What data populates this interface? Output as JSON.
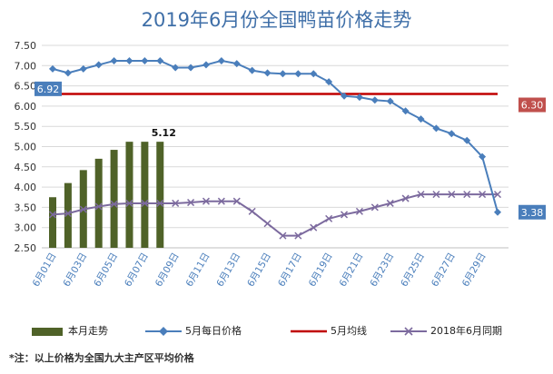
{
  "chart_data": {
    "type": "line",
    "title": "2019年6月份全国鸭苗价格走势",
    "ylim": [
      2.5,
      7.5
    ],
    "y_ticks": [
      "2.50",
      "3.00",
      "3.50",
      "4.00",
      "4.50",
      "5.00",
      "5.50",
      "6.00",
      "6.50",
      "7.00",
      "7.50"
    ],
    "x_tick_labels": [
      "6月01日",
      "6月03日",
      "6月05日",
      "6月07日",
      "6月09日",
      "6月11日",
      "6月13日",
      "6月15日",
      "6月17日",
      "6月19日",
      "6月21日",
      "6月23日",
      "6月25日",
      "6月27日",
      "6月29日"
    ],
    "days": [
      1,
      2,
      3,
      4,
      5,
      6,
      7,
      8,
      9,
      10,
      11,
      12,
      13,
      14,
      15,
      16,
      17,
      18,
      19,
      20,
      21,
      22,
      23,
      24,
      25,
      26,
      27,
      28,
      29,
      30
    ],
    "series": [
      {
        "name": "本月走势",
        "type": "bar",
        "color": "#4f6228",
        "x": [
          1,
          2,
          3,
          4,
          5,
          6,
          7,
          8
        ],
        "values": [
          3.75,
          4.1,
          4.42,
          4.7,
          4.92,
          5.12,
          5.12,
          5.12
        ]
      },
      {
        "name": "5月每日价格",
        "type": "line",
        "color": "#4a7ebb",
        "marker": "diamond",
        "x": [
          1,
          2,
          3,
          4,
          5,
          6,
          7,
          8,
          9,
          10,
          11,
          12,
          13,
          14,
          15,
          16,
          17,
          18,
          19,
          20,
          21,
          22,
          23,
          24,
          25,
          26,
          27,
          28,
          29,
          30
        ],
        "values": [
          6.92,
          6.82,
          6.92,
          7.02,
          7.12,
          7.12,
          7.12,
          7.12,
          6.95,
          6.95,
          7.02,
          7.12,
          7.05,
          6.88,
          6.82,
          6.8,
          6.8,
          6.8,
          6.6,
          6.25,
          6.22,
          6.15,
          6.12,
          5.88,
          5.68,
          5.45,
          5.32,
          5.15,
          4.75,
          3.38
        ]
      },
      {
        "name": "5月均线",
        "type": "line",
        "color": "#c00000",
        "x": [
          1,
          30
        ],
        "values": [
          6.3,
          6.3
        ]
      },
      {
        "name": "2018年6月同期",
        "type": "line",
        "color": "#7c6a9e",
        "marker": "x",
        "x": [
          1,
          2,
          3,
          4,
          5,
          6,
          7,
          8,
          9,
          10,
          11,
          12,
          13,
          14,
          15,
          16,
          17,
          18,
          19,
          20,
          21,
          22,
          23,
          24,
          25,
          26,
          27,
          28,
          29,
          30
        ],
        "values": [
          3.32,
          3.35,
          3.45,
          3.52,
          3.58,
          3.6,
          3.6,
          3.6,
          3.6,
          3.62,
          3.65,
          3.65,
          3.65,
          3.4,
          3.1,
          2.8,
          2.8,
          3.0,
          3.22,
          3.32,
          3.4,
          3.5,
          3.6,
          3.72,
          3.82,
          3.82,
          3.82,
          3.82,
          3.82,
          3.82
        ]
      }
    ],
    "data_labels": {
      "start": "6.92",
      "average": "6.30",
      "end": "3.38",
      "bar_top": "5.12"
    },
    "grid": true,
    "legend_position": "bottom"
  },
  "legend": [
    {
      "label": "本月走势",
      "color": "#4f6228"
    },
    {
      "label": "5月每日价格",
      "color": "#4a7ebb"
    },
    {
      "label": "5月均线",
      "color": "#c00000"
    },
    {
      "label": "2018年6月同期",
      "color": "#7c6a9e"
    }
  ],
  "note": "*注：以上价格为全国九大主产区平均价格"
}
